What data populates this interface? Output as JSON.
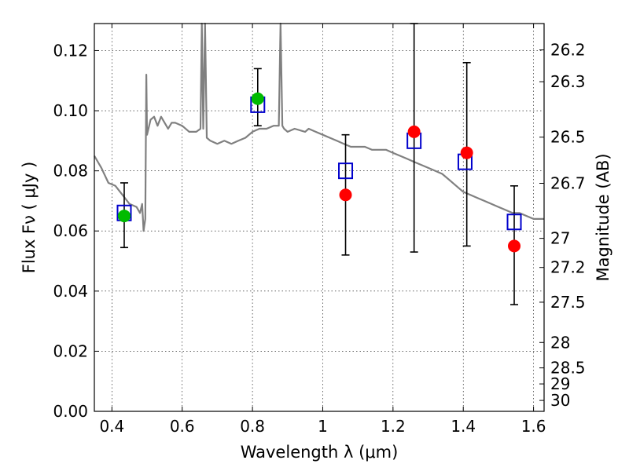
{
  "chart_data": {
    "type": "scatter",
    "xlabel": "Wavelength  λ (μm)",
    "ylabel": "Flux  Fν  ( μJy )",
    "ylabel_right": "Magnitude (AB)",
    "xlim": [
      0.35,
      1.63
    ],
    "ylim": [
      0.0,
      0.129
    ],
    "grid": true,
    "x_ticks": [
      {
        "value": 0.4,
        "label": "0.4"
      },
      {
        "value": 0.6,
        "label": "0.6"
      },
      {
        "value": 0.8,
        "label": "0.8"
      },
      {
        "value": 1.0,
        "label": "1"
      },
      {
        "value": 1.2,
        "label": "1.2"
      },
      {
        "value": 1.4,
        "label": "1.4"
      },
      {
        "value": 1.6,
        "label": "1.6"
      }
    ],
    "y_ticks": [
      {
        "value": 0.0,
        "label": "0.00"
      },
      {
        "value": 0.02,
        "label": "0.02"
      },
      {
        "value": 0.04,
        "label": "0.04"
      },
      {
        "value": 0.06,
        "label": "0.06"
      },
      {
        "value": 0.08,
        "label": "0.08"
      },
      {
        "value": 0.1,
        "label": "0.10"
      },
      {
        "value": 0.12,
        "label": "0.12"
      }
    ],
    "mag_ticks": [
      {
        "value": 26.2,
        "label": "26.2"
      },
      {
        "value": 26.3,
        "label": "26.3"
      },
      {
        "value": 26.5,
        "label": "26.5"
      },
      {
        "value": 26.7,
        "label": "26.7"
      },
      {
        "value": 27.0,
        "label": "27"
      },
      {
        "value": 27.2,
        "label": "27.2"
      },
      {
        "value": 27.5,
        "label": "27.5"
      },
      {
        "value": 28.0,
        "label": "28"
      },
      {
        "value": 28.5,
        "label": "28.5"
      },
      {
        "value": 29.0,
        "label": "29"
      },
      {
        "value": 30.0,
        "label": "30"
      }
    ],
    "series": [
      {
        "kind": "line",
        "color": "#808080",
        "x": [
          0.35,
          0.37,
          0.39,
          0.41,
          0.43,
          0.45,
          0.47,
          0.48,
          0.486,
          0.49,
          0.495,
          0.498,
          0.5,
          0.51,
          0.52,
          0.53,
          0.54,
          0.55,
          0.56,
          0.57,
          0.58,
          0.6,
          0.62,
          0.64,
          0.652,
          0.656,
          0.66,
          0.665,
          0.67,
          0.68,
          0.7,
          0.72,
          0.74,
          0.76,
          0.78,
          0.8,
          0.82,
          0.84,
          0.86,
          0.875,
          0.88,
          0.885,
          0.89,
          0.9,
          0.92,
          0.95,
          0.96,
          0.98,
          1.0,
          1.02,
          1.04,
          1.06,
          1.08,
          1.1,
          1.12,
          1.14,
          1.16,
          1.18,
          1.2,
          1.22,
          1.24,
          1.26,
          1.28,
          1.3,
          1.32,
          1.34,
          1.36,
          1.38,
          1.4,
          1.42,
          1.44,
          1.46,
          1.48,
          1.5,
          1.52,
          1.54,
          1.56,
          1.58,
          1.6,
          1.63
        ],
        "y": [
          0.085,
          0.081,
          0.076,
          0.075,
          0.072,
          0.069,
          0.068,
          0.066,
          0.069,
          0.06,
          0.064,
          0.112,
          0.092,
          0.097,
          0.098,
          0.095,
          0.098,
          0.096,
          0.094,
          0.096,
          0.096,
          0.095,
          0.093,
          0.093,
          0.094,
          0.129,
          0.094,
          0.129,
          0.091,
          0.09,
          0.089,
          0.09,
          0.089,
          0.09,
          0.091,
          0.093,
          0.094,
          0.094,
          0.095,
          0.095,
          0.129,
          0.095,
          0.094,
          0.093,
          0.094,
          0.093,
          0.094,
          0.093,
          0.092,
          0.091,
          0.09,
          0.089,
          0.088,
          0.088,
          0.088,
          0.087,
          0.087,
          0.087,
          0.086,
          0.085,
          0.084,
          0.083,
          0.082,
          0.081,
          0.08,
          0.079,
          0.077,
          0.075,
          0.073,
          0.072,
          0.071,
          0.07,
          0.069,
          0.068,
          0.067,
          0.066,
          0.066,
          0.065,
          0.064,
          0.064
        ]
      },
      {
        "kind": "markers",
        "marker": "circle",
        "color": "#00bb00",
        "x": [
          0.435,
          0.815
        ],
        "y": [
          0.065,
          0.104
        ],
        "yerr_low": [
          0.0545,
          0.095
        ],
        "yerr_high": [
          0.076,
          0.114
        ]
      },
      {
        "kind": "markers",
        "marker": "circle",
        "color": "#ff0000",
        "x": [
          1.065,
          1.26,
          1.41,
          1.545
        ],
        "y": [
          0.072,
          0.093,
          0.086,
          0.055
        ],
        "yerr_low": [
          0.052,
          0.053,
          0.055,
          0.0355
        ],
        "yerr_high": [
          0.092,
          0.129,
          0.116,
          0.075
        ]
      },
      {
        "kind": "markers",
        "marker": "open-square",
        "color": "#0000cc",
        "x": [
          0.435,
          0.815,
          1.065,
          1.26,
          1.405,
          1.545
        ],
        "y": [
          0.066,
          0.102,
          0.08,
          0.09,
          0.083,
          0.063
        ]
      }
    ]
  }
}
